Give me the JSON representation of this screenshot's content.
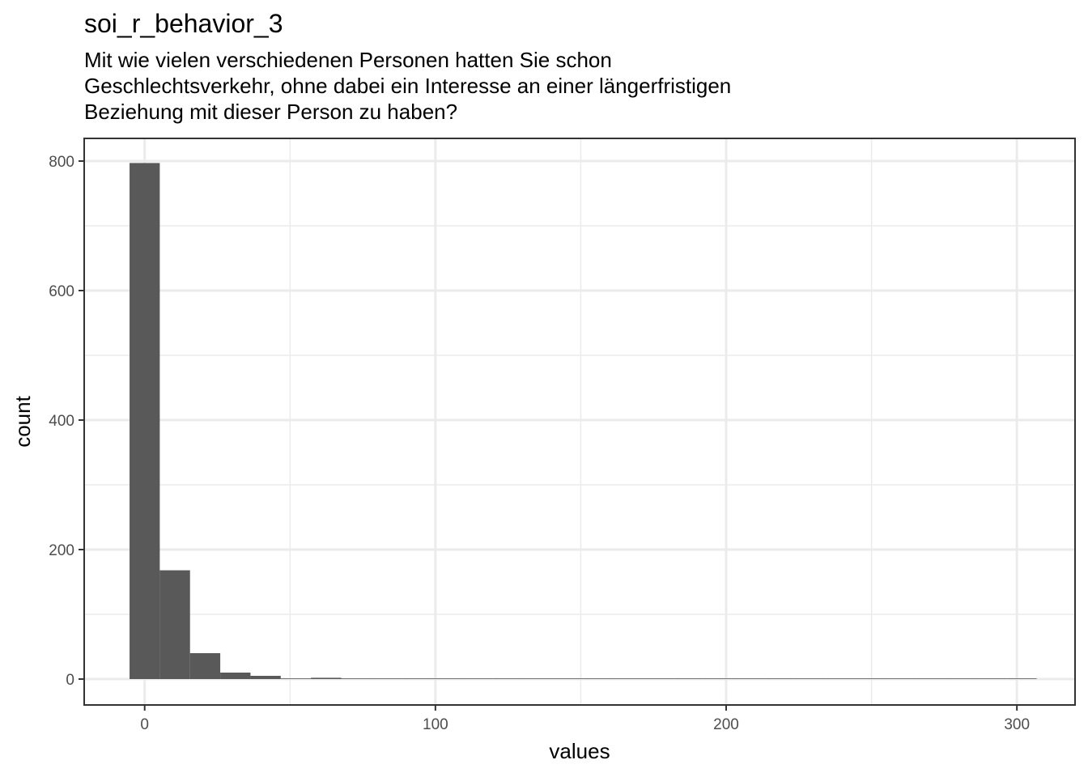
{
  "chart_data": {
    "type": "histogram",
    "title": "soi_r_behavior_3",
    "subtitle_lines": [
      "Mit wie vielen verschiedenen Personen hatten Sie schon",
      "Geschlechtsverkehr, ohne dabei ein Interesse an einer längerfristigen",
      "Beziehung mit dieser Person zu haben?"
    ],
    "xlabel": "values",
    "ylabel": "count",
    "xlim": [
      -20.8,
      320
    ],
    "ylim": [
      -40,
      835
    ],
    "x_ticks": [
      0,
      100,
      200,
      300
    ],
    "x_tick_labels": [
      "0",
      "100",
      "200",
      "300"
    ],
    "y_ticks": [
      0,
      200,
      400,
      600,
      800
    ],
    "y_tick_labels": [
      "0",
      "200",
      "400",
      "600",
      "800"
    ],
    "x_minor_ticks": [
      50,
      150,
      250
    ],
    "y_minor_ticks": [
      100,
      300,
      500,
      700
    ],
    "grid": true,
    "bar_color": "#595959",
    "bins": [
      {
        "x0": -5.2,
        "x1": 5.2,
        "count": 797
      },
      {
        "x0": 5.2,
        "x1": 15.6,
        "count": 168
      },
      {
        "x0": 15.6,
        "x1": 26.0,
        "count": 40
      },
      {
        "x0": 26.0,
        "x1": 36.4,
        "count": 10
      },
      {
        "x0": 36.4,
        "x1": 46.8,
        "count": 5
      },
      {
        "x0": 46.8,
        "x1": 57.2,
        "count": 1
      },
      {
        "x0": 57.2,
        "x1": 67.6,
        "count": 2
      },
      {
        "x0": 67.6,
        "x1": 78.0,
        "count": 1
      },
      {
        "x0": 78.0,
        "x1": 88.4,
        "count": 0
      },
      {
        "x0": 88.4,
        "x1": 98.8,
        "count": 0
      },
      {
        "x0": 98.8,
        "x1": 109.2,
        "count": 0
      },
      {
        "x0": 109.2,
        "x1": 119.6,
        "count": 0
      },
      {
        "x0": 119.6,
        "x1": 130.0,
        "count": 0
      },
      {
        "x0": 130.0,
        "x1": 140.4,
        "count": 0
      },
      {
        "x0": 140.4,
        "x1": 150.8,
        "count": 0
      },
      {
        "x0": 150.8,
        "x1": 161.2,
        "count": 0
      },
      {
        "x0": 161.2,
        "x1": 171.6,
        "count": 0
      },
      {
        "x0": 171.6,
        "x1": 182.0,
        "count": 0
      },
      {
        "x0": 182.0,
        "x1": 192.4,
        "count": 0
      },
      {
        "x0": 192.4,
        "x1": 202.8,
        "count": 0
      },
      {
        "x0": 202.8,
        "x1": 213.2,
        "count": 0
      },
      {
        "x0": 213.2,
        "x1": 223.6,
        "count": 0
      },
      {
        "x0": 223.6,
        "x1": 234.0,
        "count": 0
      },
      {
        "x0": 234.0,
        "x1": 244.4,
        "count": 0
      },
      {
        "x0": 244.4,
        "x1": 254.8,
        "count": 0
      },
      {
        "x0": 254.8,
        "x1": 265.2,
        "count": 0
      },
      {
        "x0": 265.2,
        "x1": 275.6,
        "count": 0
      },
      {
        "x0": 275.6,
        "x1": 286.0,
        "count": 0
      },
      {
        "x0": 286.0,
        "x1": 296.4,
        "count": 0
      },
      {
        "x0": 296.4,
        "x1": 306.8,
        "count": 1
      }
    ]
  }
}
